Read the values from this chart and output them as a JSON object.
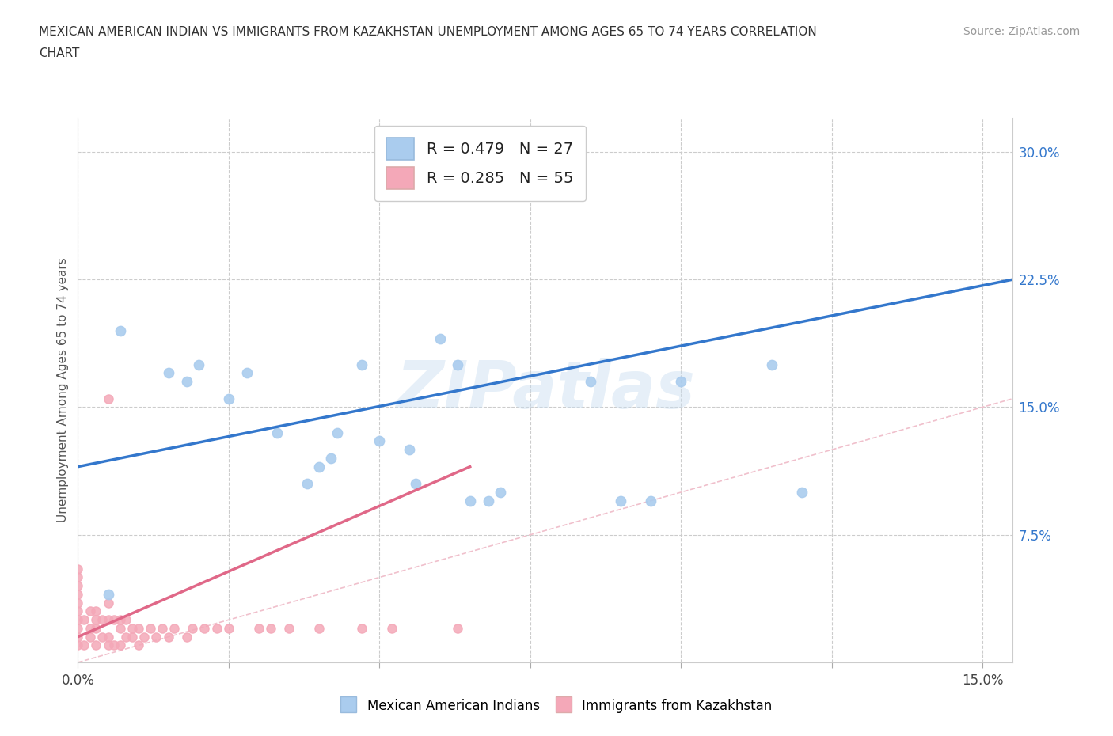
{
  "title_line1": "MEXICAN AMERICAN INDIAN VS IMMIGRANTS FROM KAZAKHSTAN UNEMPLOYMENT AMONG AGES 65 TO 74 YEARS CORRELATION",
  "title_line2": "CHART",
  "source": "Source: ZipAtlas.com",
  "ylabel": "Unemployment Among Ages 65 to 74 years",
  "xlim": [
    0.0,
    0.155
  ],
  "ylim": [
    0.0,
    0.32
  ],
  "blue_R": 0.479,
  "blue_N": 27,
  "pink_R": 0.285,
  "pink_N": 55,
  "blue_dot_color": "#aaccee",
  "pink_dot_color": "#f4a8b8",
  "blue_line_color": "#3377cc",
  "pink_line_color": "#e06888",
  "diagonal_color": "#f0c0cc",
  "watermark": "ZIPatlas",
  "blue_scatter_x": [
    0.005,
    0.007,
    0.015,
    0.018,
    0.02,
    0.025,
    0.028,
    0.033,
    0.038,
    0.04,
    0.042,
    0.043,
    0.047,
    0.05,
    0.055,
    0.056,
    0.06,
    0.063,
    0.065,
    0.068,
    0.07,
    0.085,
    0.09,
    0.095,
    0.1,
    0.115,
    0.12
  ],
  "blue_scatter_y": [
    0.04,
    0.195,
    0.17,
    0.165,
    0.175,
    0.155,
    0.17,
    0.135,
    0.105,
    0.115,
    0.12,
    0.135,
    0.175,
    0.13,
    0.125,
    0.105,
    0.19,
    0.175,
    0.095,
    0.095,
    0.1,
    0.165,
    0.095,
    0.095,
    0.165,
    0.175,
    0.1
  ],
  "pink_scatter_x": [
    0.0,
    0.0,
    0.0,
    0.0,
    0.0,
    0.0,
    0.0,
    0.0,
    0.0,
    0.0,
    0.001,
    0.001,
    0.002,
    0.002,
    0.002,
    0.003,
    0.003,
    0.003,
    0.003,
    0.004,
    0.004,
    0.005,
    0.005,
    0.005,
    0.005,
    0.005,
    0.006,
    0.006,
    0.007,
    0.007,
    0.007,
    0.008,
    0.008,
    0.009,
    0.009,
    0.01,
    0.01,
    0.011,
    0.012,
    0.013,
    0.014,
    0.015,
    0.016,
    0.018,
    0.019,
    0.021,
    0.023,
    0.025,
    0.03,
    0.032,
    0.035,
    0.04,
    0.047,
    0.052,
    0.063
  ],
  "pink_scatter_y": [
    0.01,
    0.015,
    0.02,
    0.025,
    0.03,
    0.035,
    0.04,
    0.045,
    0.05,
    0.055,
    0.01,
    0.025,
    0.015,
    0.02,
    0.03,
    0.01,
    0.02,
    0.025,
    0.03,
    0.015,
    0.025,
    0.01,
    0.015,
    0.025,
    0.035,
    0.155,
    0.01,
    0.025,
    0.01,
    0.02,
    0.025,
    0.015,
    0.025,
    0.015,
    0.02,
    0.01,
    0.02,
    0.015,
    0.02,
    0.015,
    0.02,
    0.015,
    0.02,
    0.015,
    0.02,
    0.02,
    0.02,
    0.02,
    0.02,
    0.02,
    0.02,
    0.02,
    0.02,
    0.02,
    0.02
  ],
  "blue_line_x0": 0.0,
  "blue_line_y0": 0.115,
  "blue_line_x1": 0.155,
  "blue_line_y1": 0.225,
  "pink_line_x0": 0.0,
  "pink_line_y0": 0.015,
  "pink_line_x1": 0.065,
  "pink_line_y1": 0.115,
  "background_color": "#ffffff",
  "grid_color": "#cccccc",
  "ytick_right_values": [
    0.075,
    0.15,
    0.225,
    0.3
  ],
  "ytick_right_labels": [
    "7.5%",
    "15.0%",
    "22.5%",
    "30.0%"
  ],
  "xtick_positions": [
    0.0,
    0.025,
    0.05,
    0.075,
    0.1,
    0.125,
    0.15
  ]
}
